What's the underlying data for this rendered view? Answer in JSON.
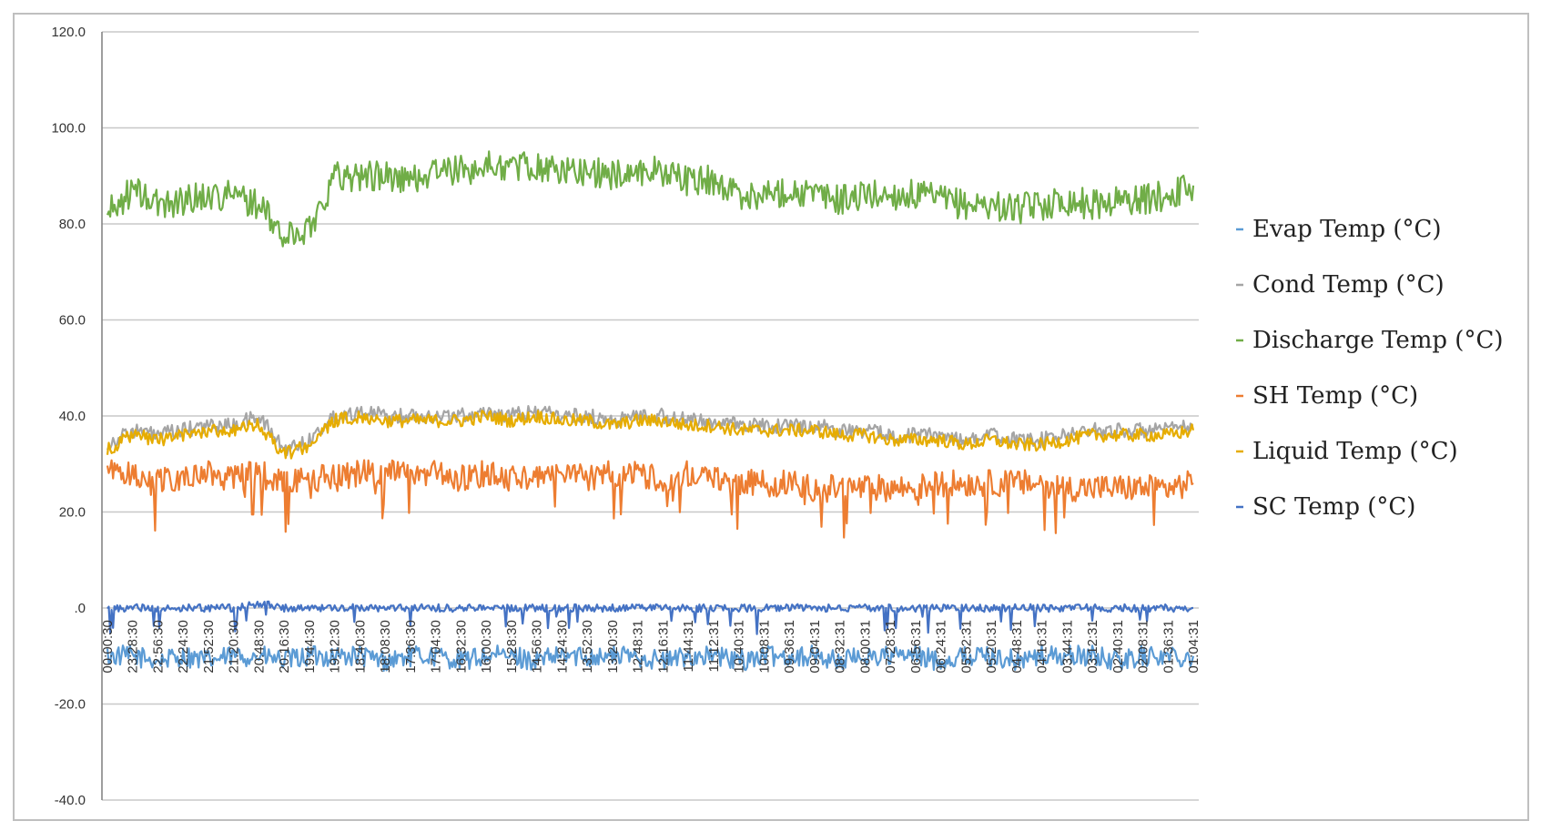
{
  "chart_data": {
    "type": "line",
    "title": "",
    "xlabel": "",
    "ylabel": "",
    "ylim": [
      -40,
      120
    ],
    "yticks": [
      "-40.0",
      "-20.0",
      ".0",
      "20.0",
      "40.0",
      "60.0",
      "80.0",
      "100.0",
      "120.0"
    ],
    "ytick_values": [
      -40,
      -20,
      0,
      20,
      40,
      60,
      80,
      100,
      120
    ],
    "grid": "horizontal",
    "legend_position": "right",
    "categories": [
      "00:00:30",
      "23:28:30",
      "22:56:30",
      "22:24:30",
      "21:52:30",
      "21:20:30",
      "20:48:30",
      "20:16:30",
      "19:44:30",
      "19:12:30",
      "18:40:30",
      "18:08:30",
      "17:36:30",
      "17:04:30",
      "16:32:30",
      "16:00:30",
      "15:28:30",
      "14:56:30",
      "14:24:30",
      "13:52:30",
      "13:20:30",
      "12:48:31",
      "12:16:31",
      "11:44:31",
      "11:12:31",
      "10:40:31",
      "10:08:31",
      "09:36:31",
      "09:04:31",
      "08:32:31",
      "08:00:31",
      "07:28:31",
      "06:56:31",
      "06:24:31",
      "05:52:31",
      "05:20:31",
      "04:48:31",
      "04:16:31",
      "03:44:31",
      "03:12:31",
      "02:40:31",
      "02:08:31",
      "01:36:31",
      "01:04:31"
    ],
    "series": [
      {
        "name": "Evap Temp (°C)",
        "color": "#5b9bd5",
        "values": [
          -10,
          -10,
          -11,
          -10,
          -11,
          -10,
          -10,
          -11,
          -10,
          -10,
          -10,
          -11,
          -10,
          -10,
          -11,
          -10,
          -10,
          -11,
          -10,
          -10,
          -10,
          -10,
          -11,
          -10,
          -10,
          -11,
          -10,
          -10,
          -10,
          -11,
          -10,
          -10,
          -10,
          -11,
          -10,
          -10,
          -11,
          -10,
          -10,
          -10,
          -11,
          -10,
          -10,
          -10
        ]
      },
      {
        "name": "Cond Temp (°C)",
        "color": "#a5a5a5",
        "values": [
          34,
          37,
          36,
          37,
          38,
          38,
          40,
          33,
          35,
          40,
          41,
          40,
          40,
          40,
          40,
          41,
          40,
          41,
          40,
          40,
          39,
          40,
          40,
          39,
          39,
          38,
          38,
          38,
          38,
          37,
          37,
          36,
          36,
          36,
          35,
          36,
          35,
          35,
          36,
          37,
          37,
          37,
          37,
          38
        ]
      },
      {
        "name": "Discharge Temp (°C)",
        "color": "#70ad47",
        "values": [
          82,
          87,
          84,
          85,
          86,
          86,
          84,
          77,
          79,
          90,
          90,
          90,
          89,
          91,
          91,
          92,
          92,
          92,
          91,
          91,
          90,
          91,
          91,
          89,
          89,
          86,
          86,
          87,
          86,
          85,
          86,
          86,
          86,
          85,
          84,
          84,
          83,
          84,
          85,
          84,
          85,
          85,
          86,
          88
        ]
      },
      {
        "name": "SH Temp (°C)",
        "color": "#ed7d31",
        "values": [
          28,
          28,
          27,
          27,
          28,
          27,
          28,
          26,
          27,
          27,
          28,
          28,
          28,
          28,
          27,
          28,
          27,
          27,
          28,
          27,
          28,
          28,
          27,
          28,
          27,
          26,
          26,
          26,
          25,
          25,
          25,
          25,
          25,
          26,
          26,
          26,
          26,
          26,
          25,
          25,
          25,
          25,
          25,
          26
        ]
      },
      {
        "name": "Liquid Temp (°C)",
        "color": "#e6ac00",
        "values": [
          33,
          36,
          35,
          36,
          37,
          37,
          38,
          32,
          34,
          39,
          40,
          39,
          39,
          39,
          39,
          40,
          39,
          40,
          39,
          39,
          38,
          39,
          39,
          38,
          38,
          37,
          37,
          37,
          37,
          36,
          36,
          35,
          35,
          35,
          34,
          35,
          34,
          34,
          35,
          36,
          36,
          36,
          36,
          37
        ]
      },
      {
        "name": "SC Temp (°C)",
        "color": "#4472c4",
        "values": [
          0,
          0,
          0,
          0,
          0,
          0,
          1,
          0,
          0,
          0,
          0,
          0,
          0,
          0,
          0,
          0,
          0,
          0,
          0,
          0,
          0,
          0,
          0,
          0,
          0,
          0,
          0,
          0,
          0,
          0,
          0,
          0,
          0,
          0,
          0,
          0,
          0,
          0,
          0,
          0,
          0,
          0,
          0,
          0
        ]
      }
    ]
  }
}
